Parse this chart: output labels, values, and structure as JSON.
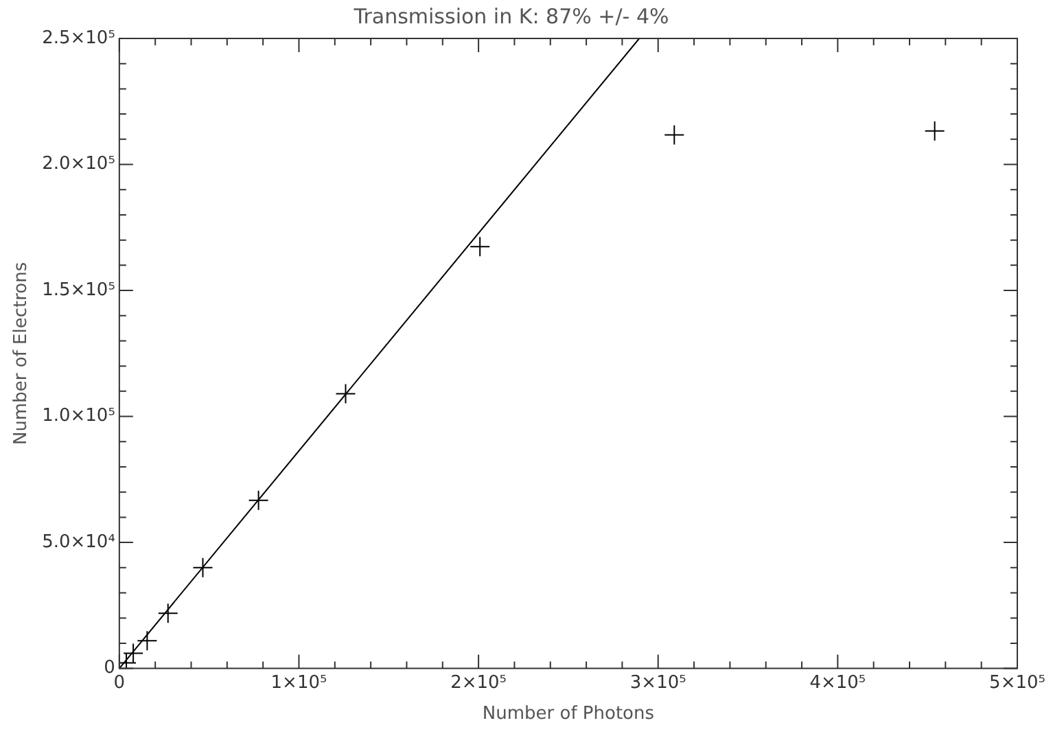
{
  "chart_data": {
    "type": "scatter",
    "title": "Transmission in K: 87% +/- 4%",
    "xlabel": "Number of Photons",
    "ylabel": "Number of Electrons",
    "xlim": [
      0,
      500000
    ],
    "ylim": [
      0,
      250000
    ],
    "xticks": [
      {
        "value": 0,
        "label": "0"
      },
      {
        "value": 20000,
        "label": null
      },
      {
        "value": 40000,
        "label": null
      },
      {
        "value": 60000,
        "label": null
      },
      {
        "value": 80000,
        "label": null
      },
      {
        "value": 100000,
        "label": "1×10⁵"
      },
      {
        "value": 120000,
        "label": null
      },
      {
        "value": 140000,
        "label": null
      },
      {
        "value": 160000,
        "label": null
      },
      {
        "value": 180000,
        "label": null
      },
      {
        "value": 200000,
        "label": "2×10⁵"
      },
      {
        "value": 220000,
        "label": null
      },
      {
        "value": 240000,
        "label": null
      },
      {
        "value": 260000,
        "label": null
      },
      {
        "value": 280000,
        "label": null
      },
      {
        "value": 300000,
        "label": "3×10⁵"
      },
      {
        "value": 320000,
        "label": null
      },
      {
        "value": 340000,
        "label": null
      },
      {
        "value": 360000,
        "label": null
      },
      {
        "value": 380000,
        "label": null
      },
      {
        "value": 400000,
        "label": "4×10⁵"
      },
      {
        "value": 420000,
        "label": null
      },
      {
        "value": 440000,
        "label": null
      },
      {
        "value": 460000,
        "label": null
      },
      {
        "value": 480000,
        "label": null
      },
      {
        "value": 500000,
        "label": "5×10⁵"
      }
    ],
    "yticks": [
      {
        "value": 0,
        "label": "0"
      },
      {
        "value": 10000,
        "label": null
      },
      {
        "value": 20000,
        "label": null
      },
      {
        "value": 30000,
        "label": null
      },
      {
        "value": 40000,
        "label": null
      },
      {
        "value": 50000,
        "label": "5.0×10⁴"
      },
      {
        "value": 60000,
        "label": null
      },
      {
        "value": 70000,
        "label": null
      },
      {
        "value": 80000,
        "label": null
      },
      {
        "value": 90000,
        "label": null
      },
      {
        "value": 100000,
        "label": "1.0×10⁵"
      },
      {
        "value": 110000,
        "label": null
      },
      {
        "value": 120000,
        "label": null
      },
      {
        "value": 130000,
        "label": null
      },
      {
        "value": 140000,
        "label": null
      },
      {
        "value": 150000,
        "label": "1.5×10⁵"
      },
      {
        "value": 160000,
        "label": null
      },
      {
        "value": 170000,
        "label": null
      },
      {
        "value": 180000,
        "label": null
      },
      {
        "value": 190000,
        "label": null
      },
      {
        "value": 200000,
        "label": "2.0×10⁵"
      },
      {
        "value": 210000,
        "label": null
      },
      {
        "value": 220000,
        "label": null
      },
      {
        "value": 230000,
        "label": null
      },
      {
        "value": 240000,
        "label": null
      },
      {
        "value": 250000,
        "label": "2.5×10⁵"
      }
    ],
    "grid": false,
    "legend": false,
    "series": [
      {
        "marker": "cross",
        "color": "#000000",
        "x": [
          3900,
          7750,
          15500,
          27100,
          46500,
          77500,
          126000,
          200800,
          309000,
          454000
        ],
        "values": [
          2200,
          6000,
          11000,
          21900,
          40000,
          66700,
          109000,
          167400,
          211700,
          213300
        ]
      },
      {
        "type": "line",
        "marker": "none",
        "color": "#000000",
        "x": [
          0,
          289500
        ],
        "values": [
          0,
          250000
        ]
      }
    ]
  }
}
